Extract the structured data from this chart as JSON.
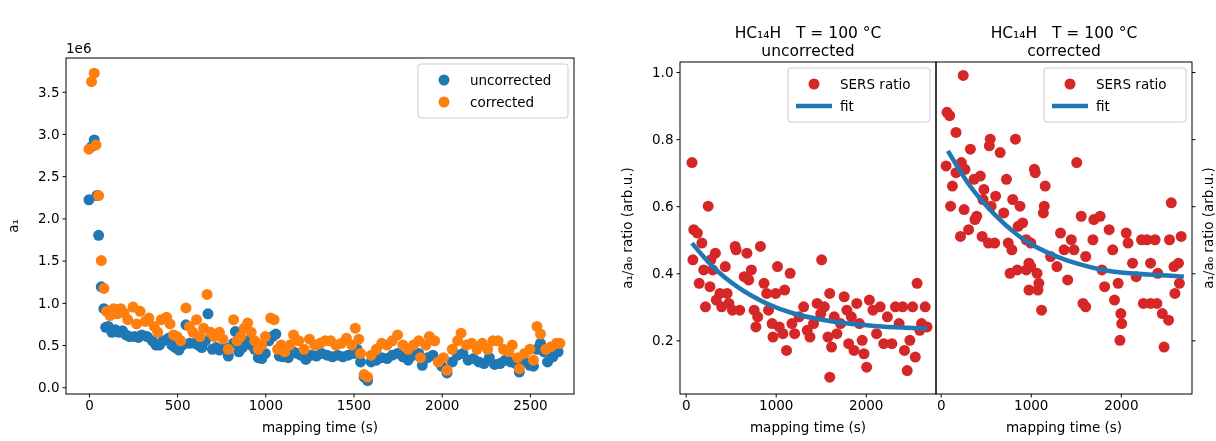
{
  "chart_data": [
    {
      "type": "scatter",
      "xlabel": "mapping time (s)",
      "ylabel": "a₁",
      "xlim": [
        -130,
        2750
      ],
      "ylim": [
        -0.08,
        3.9
      ],
      "xticks": [
        0,
        500,
        1000,
        1500,
        2000,
        2500
      ],
      "yticks": [
        {
          "value": 0,
          "label": "0.0"
        },
        0.5,
        {
          "value": 1,
          "label": "1.0"
        },
        1.5,
        {
          "value": 2,
          "label": "2.0"
        },
        2.5,
        {
          "value": 3,
          "label": "3.0"
        },
        3.5
      ],
      "annotations": [
        "1e6"
      ],
      "legend": "top right",
      "marker": "circle",
      "grid": false,
      "series": [
        {
          "name": "uncorrected",
          "color": "#1f77b4",
          "x": [
            0,
            15,
            30,
            45,
            55,
            70,
            85,
            95,
            110,
            130,
            150,
            170,
            190,
            210,
            230,
            260,
            280,
            300,
            330,
            360,
            380,
            400,
            420,
            450,
            470,
            490,
            510,
            530,
            550,
            570,
            600,
            620,
            640,
            660,
            675,
            700,
            720,
            740,
            770,
            790,
            820,
            830,
            850,
            870,
            900,
            920,
            940,
            960,
            980,
            1000,
            1020,
            1040,
            1060,
            1080,
            1100,
            1130,
            1160,
            1180,
            1200,
            1230,
            1260,
            1290,
            1320,
            1350,
            1380,
            1410,
            1440,
            1470,
            1500,
            1520,
            1540,
            1560,
            1580,
            1600,
            1630,
            1660,
            1690,
            1720,
            1750,
            1780,
            1810,
            1840,
            1870,
            1890,
            1920,
            1950,
            2000,
            2030,
            2060,
            2090,
            2120,
            2150,
            2180,
            2210,
            2240,
            2270,
            2300,
            2330,
            2360,
            2390,
            2420,
            2440,
            2470,
            2500,
            2520,
            2540,
            2560,
            2580,
            2600,
            2630,
            2660
          ],
          "values": [
            2.22,
            2.85,
            2.93,
            2.27,
            1.8,
            1.19,
            0.93,
            0.71,
            0.72,
            0.65,
            0.68,
            0.65,
            0.67,
            0.62,
            0.6,
            0.6,
            0.59,
            0.62,
            0.6,
            0.55,
            0.5,
            0.5,
            0.55,
            0.58,
            0.5,
            0.47,
            0.44,
            0.5,
            0.74,
            0.52,
            0.52,
            0.5,
            0.47,
            0.55,
            0.87,
            0.45,
            0.47,
            0.44,
            0.47,
            0.37,
            0.52,
            0.66,
            0.42,
            0.47,
            0.55,
            0.5,
            0.45,
            0.35,
            0.34,
            0.4,
            0.55,
            0.6,
            0.63,
            0.37,
            0.36,
            0.35,
            0.42,
            0.4,
            0.38,
            0.33,
            0.38,
            0.37,
            0.4,
            0.38,
            0.36,
            0.38,
            0.36,
            0.38,
            0.4,
            0.45,
            0.3,
            0.12,
            0.08,
            0.3,
            0.32,
            0.35,
            0.34,
            0.38,
            0.4,
            0.36,
            0.32,
            0.38,
            0.4,
            0.26,
            0.35,
            0.38,
            0.25,
            0.17,
            0.3,
            0.38,
            0.4,
            0.32,
            0.34,
            0.3,
            0.28,
            0.35,
            0.27,
            0.28,
            0.32,
            0.3,
            0.28,
            0.18,
            0.3,
            0.26,
            0.25,
            0.45,
            0.52,
            0.42,
            0.3,
            0.36,
            0.42
          ]
        },
        {
          "name": "corrected",
          "color": "#ff7f0e",
          "x": [
            0,
            15,
            30,
            40,
            55,
            70,
            85,
            100,
            120,
            140,
            160,
            180,
            200,
            220,
            250,
            270,
            290,
            320,
            340,
            370,
            390,
            410,
            440,
            460,
            480,
            500,
            520,
            550,
            570,
            590,
            610,
            630,
            650,
            670,
            690,
            710,
            740,
            760,
            790,
            820,
            840,
            860,
            880,
            900,
            920,
            940,
            960,
            980,
            1000,
            1030,
            1050,
            1070,
            1090,
            1110,
            1140,
            1160,
            1190,
            1220,
            1250,
            1280,
            1310,
            1340,
            1370,
            1400,
            1430,
            1460,
            1490,
            1510,
            1530,
            1540,
            1560,
            1580,
            1600,
            1630,
            1660,
            1690,
            1720,
            1750,
            1780,
            1810,
            1840,
            1870,
            1880,
            1910,
            1930,
            1960,
            1980,
            2010,
            2030,
            2060,
            2090,
            2110,
            2140,
            2170,
            2200,
            2230,
            2260,
            2290,
            2320,
            2350,
            2380,
            2400,
            2430,
            2440,
            2470,
            2500,
            2520,
            2540,
            2560,
            2590,
            2620,
            2650,
            2670
          ],
          "values": [
            2.82,
            3.62,
            3.72,
            2.87,
            2.27,
            1.5,
            1.17,
            0.9,
            0.85,
            0.93,
            0.87,
            0.93,
            0.88,
            0.8,
            0.95,
            0.75,
            0.9,
            0.78,
            0.82,
            0.72,
            0.65,
            0.8,
            0.83,
            0.75,
            0.62,
            0.6,
            0.55,
            0.94,
            0.72,
            0.65,
            0.8,
            0.6,
            0.7,
            1.1,
            0.65,
            0.6,
            0.65,
            0.57,
            0.45,
            0.8,
            0.55,
            0.6,
            0.7,
            0.76,
            0.65,
            0.55,
            0.45,
            0.5,
            0.6,
            0.82,
            0.8,
            0.45,
            0.5,
            0.42,
            0.5,
            0.62,
            0.55,
            0.45,
            0.57,
            0.5,
            0.52,
            0.55,
            0.55,
            0.5,
            0.52,
            0.58,
            0.5,
            0.7,
            0.57,
            0.4,
            0.15,
            0.12,
            0.38,
            0.45,
            0.52,
            0.5,
            0.55,
            0.62,
            0.5,
            0.45,
            0.5,
            0.55,
            0.35,
            0.5,
            0.6,
            0.55,
            0.3,
            0.35,
            0.2,
            0.45,
            0.55,
            0.64,
            0.5,
            0.52,
            0.45,
            0.52,
            0.45,
            0.55,
            0.55,
            0.45,
            0.42,
            0.5,
            0.35,
            0.22,
            0.4,
            0.45,
            0.32,
            0.72,
            0.63,
            0.45,
            0.48,
            0.52,
            0.52
          ]
        }
      ]
    },
    {
      "type": "scatter",
      "title": "HC₁₄H   T = 100 °C",
      "subtitle": "uncorrected",
      "xlabel": "mapping time (s)",
      "ylabel": "a₁/a₀ ratio (arb.u.)",
      "xlim": [
        -63,
        2780
      ],
      "ylim": [
        0.04,
        1.03
      ],
      "xticks": [
        0,
        1000,
        2000
      ],
      "yticks": [
        0.2,
        0.4,
        0.6,
        0.8,
        {
          "value": 1,
          "label": "1.0"
        }
      ],
      "legend": "top right",
      "grid": false,
      "series": [
        {
          "name": "SERS ratio",
          "color": "#d62728",
          "marker": "circle",
          "x": [
            70,
            90,
            130,
            80,
            150,
            180,
            200,
            220,
            250,
            270,
            280,
            300,
            330,
            340,
            380,
            400,
            440,
            460,
            480,
            520,
            550,
            560,
            600,
            650,
            680,
            700,
            730,
            760,
            780,
            800,
            830,
            870,
            900,
            920,
            960,
            970,
            1000,
            1020,
            1040,
            1080,
            1100,
            1120,
            1160,
            1180,
            1210,
            1260,
            1310,
            1350,
            1380,
            1420,
            1460,
            1500,
            1510,
            1540,
            1580,
            1600,
            1620,
            1600,
            1650,
            1680,
            1720,
            1760,
            1790,
            1810,
            1840,
            1870,
            1900,
            1930,
            1960,
            1980,
            2010,
            2040,
            2080,
            2120,
            2160,
            2200,
            2240,
            2290,
            2330,
            2370,
            2410,
            2430,
            2460,
            2490,
            2520,
            2550,
            2570,
            2600,
            2620,
            2660,
            2680
          ],
          "values": [
            0.73,
            0.53,
            0.52,
            0.44,
            0.37,
            0.49,
            0.41,
            0.3,
            0.6,
            0.36,
            0.44,
            0.41,
            0.46,
            0.32,
            0.34,
            0.3,
            0.42,
            0.34,
            0.31,
            0.29,
            0.48,
            0.47,
            0.29,
            0.39,
            0.46,
            0.38,
            0.41,
            0.29,
            0.24,
            0.27,
            0.48,
            0.37,
            0.34,
            0.29,
            0.25,
            0.21,
            0.34,
            0.42,
            0.24,
            0.22,
            0.35,
            0.17,
            0.4,
            0.25,
            0.22,
            0.27,
            0.3,
            0.23,
            0.21,
            0.25,
            0.31,
            0.28,
            0.44,
            0.3,
            0.21,
            0.34,
            0.18,
            0.09,
            0.27,
            0.22,
            0.25,
            0.33,
            0.29,
            0.19,
            0.27,
            0.17,
            0.31,
            0.25,
            0.2,
            0.16,
            0.12,
            0.32,
            0.29,
            0.22,
            0.3,
            0.19,
            0.27,
            0.19,
            0.3,
            0.25,
            0.3,
            0.17,
            0.11,
            0.2,
            0.3,
            0.15,
            0.37,
            0.23,
            0.25,
            0.3,
            0.24
          ]
        },
        {
          "name": "fit",
          "type": "line",
          "color": "#1f77b4",
          "marker": "none",
          "x": [
            70,
            300,
            600,
            900,
            1200,
            1500,
            1800,
            2100,
            2400,
            2680
          ],
          "values": [
            0.49,
            0.42,
            0.355,
            0.31,
            0.28,
            0.262,
            0.25,
            0.243,
            0.238,
            0.235
          ]
        }
      ]
    },
    {
      "type": "scatter",
      "title": "HC₁₄H   T = 100 °C",
      "subtitle": "corrected",
      "xlabel": "mapping time (s)",
      "ylabel": "a₁/a₀ ratio (arb.u.)",
      "xlim": [
        -52,
        2790
      ],
      "ylim": [
        0.04,
        1.03
      ],
      "xticks": [
        0,
        1000,
        2000
      ],
      "yticks": [
        0.2,
        0.4,
        0.6,
        0.8,
        1
      ],
      "tick_labels": "x",
      "legend": "top right",
      "grid": false,
      "series": [
        {
          "name": "SERS ratio",
          "color": "#d62728",
          "marker": "circle",
          "x": [
            250,
            70,
            100,
            170,
            330,
            550,
            540,
            660,
            830,
            60,
            230,
            270,
            130,
            170,
            370,
            440,
            480,
            610,
            730,
            800,
            110,
            260,
            400,
            470,
            560,
            700,
            880,
            910,
            1040,
            1050,
            1160,
            1150,
            1140,
            220,
            310,
            380,
            460,
            530,
            600,
            750,
            790,
            860,
            950,
            980,
            1000,
            770,
            850,
            950,
            1070,
            1000,
            1090,
            1080,
            1120,
            980,
            1220,
            1290,
            1330,
            1370,
            1410,
            1450,
            1480,
            1510,
            1560,
            1610,
            1580,
            1610,
            1690,
            1700,
            1770,
            1790,
            1820,
            1870,
            1910,
            1930,
            1970,
            2000,
            2010,
            1990,
            2060,
            2080,
            2130,
            2170,
            2230,
            2290,
            2330,
            2380,
            2410,
            2250,
            2330,
            2400,
            2460,
            2480,
            2530,
            2560,
            2540,
            2590,
            2640,
            2670,
            2650,
            2600
          ],
          "values": [
            0.99,
            0.88,
            0.87,
            0.82,
            0.77,
            0.8,
            0.78,
            0.76,
            0.8,
            0.72,
            0.73,
            0.71,
            0.66,
            0.7,
            0.68,
            0.69,
            0.65,
            0.63,
            0.68,
            0.62,
            0.6,
            0.59,
            0.57,
            0.62,
            0.6,
            0.58,
            0.6,
            0.55,
            0.71,
            0.7,
            0.66,
            0.6,
            0.58,
            0.51,
            0.53,
            0.56,
            0.51,
            0.49,
            0.49,
            0.49,
            0.47,
            0.54,
            0.5,
            0.43,
            0.42,
            0.4,
            0.41,
            0.41,
            0.4,
            0.49,
            0.37,
            0.35,
            0.29,
            0.35,
            0.45,
            0.42,
            0.52,
            0.47,
            0.38,
            0.5,
            0.47,
            0.73,
            0.57,
            0.45,
            0.31,
            0.3,
            0.5,
            0.56,
            0.57,
            0.41,
            0.36,
            0.53,
            0.47,
            0.32,
            0.37,
            0.28,
            0.25,
            0.2,
            0.52,
            0.49,
            0.43,
            0.39,
            0.5,
            0.5,
            0.43,
            0.5,
            0.4,
            0.31,
            0.31,
            0.31,
            0.28,
            0.18,
            0.26,
            0.61,
            0.5,
            0.42,
            0.43,
            0.51,
            0.37,
            0.34
          ]
        },
        {
          "name": "fit",
          "type": "line",
          "color": "#1f77b4",
          "marker": "none",
          "x": [
            80,
            300,
            600,
            900,
            1200,
            1500,
            1800,
            2100,
            2400,
            2700
          ],
          "values": [
            0.765,
            0.67,
            0.575,
            0.505,
            0.46,
            0.43,
            0.41,
            0.4,
            0.395,
            0.39
          ]
        }
      ]
    }
  ]
}
